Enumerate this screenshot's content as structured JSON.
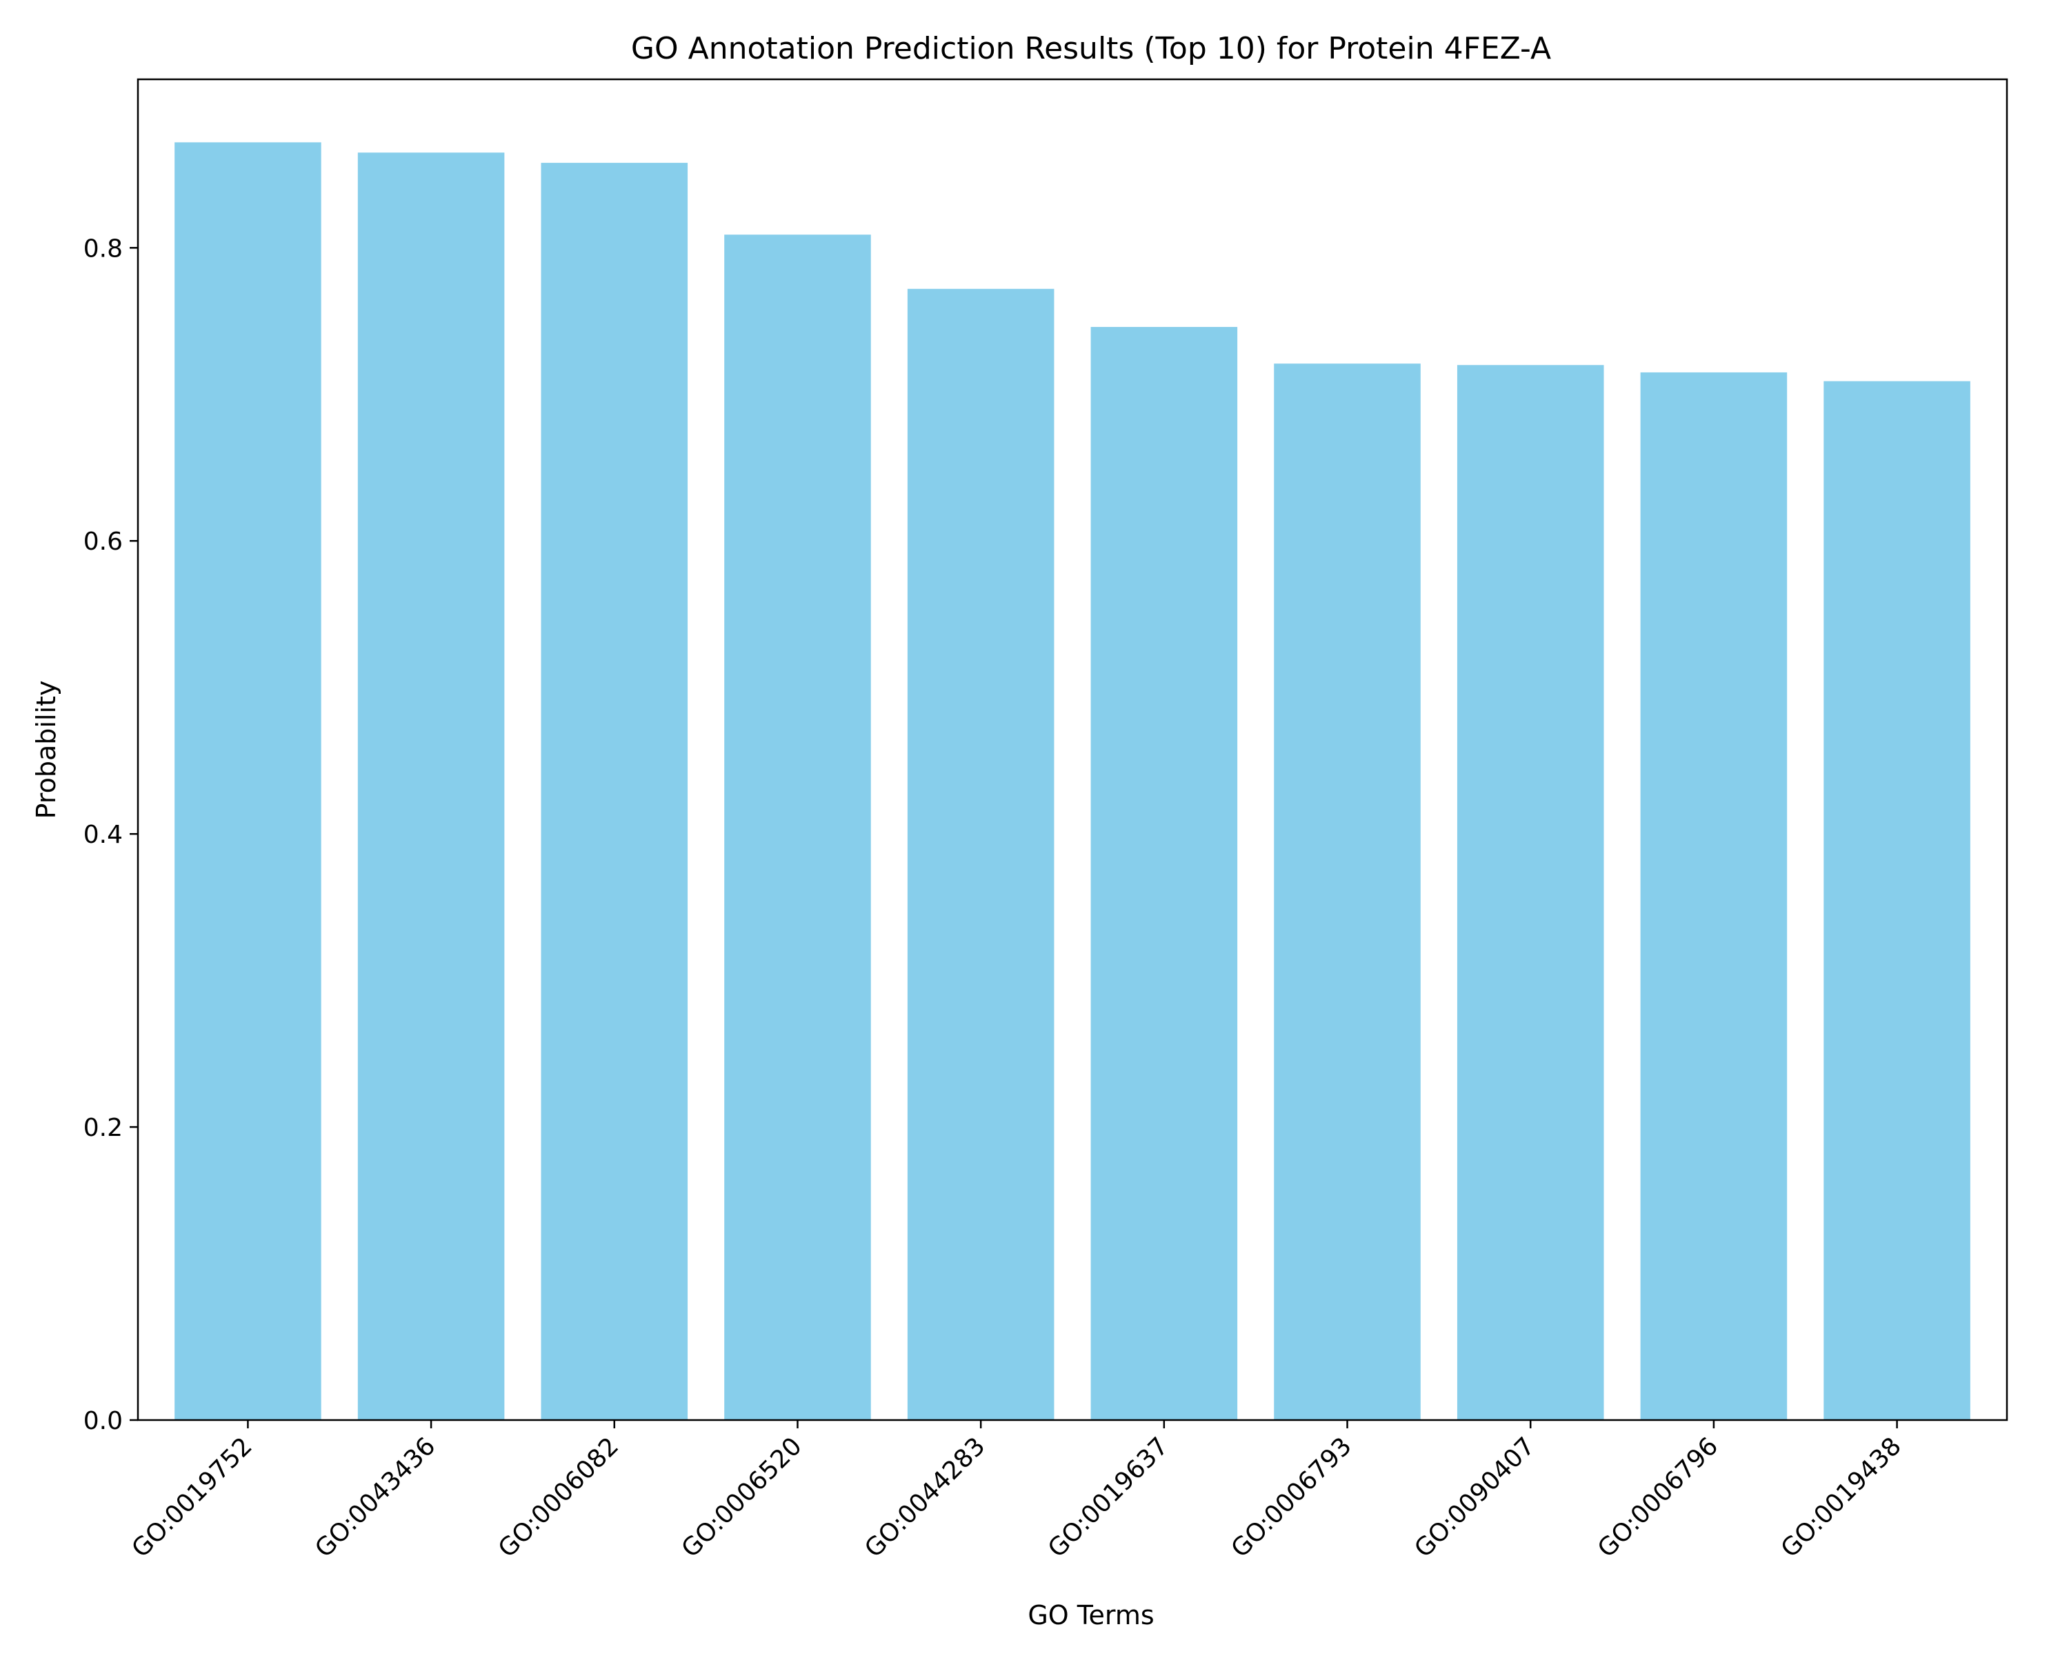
{
  "chart_data": {
    "type": "bar",
    "title": "GO Annotation Prediction Results (Top 10) for Protein 4FEZ-A",
    "xlabel": "GO Terms",
    "ylabel": "Probability",
    "categories": [
      "GO:0019752",
      "GO:0043436",
      "GO:0006082",
      "GO:0006520",
      "GO:0044283",
      "GO:0019637",
      "GO:0006793",
      "GO:0090407",
      "GO:0006796",
      "GO:0019438"
    ],
    "values": [
      0.872,
      0.865,
      0.858,
      0.809,
      0.772,
      0.746,
      0.721,
      0.72,
      0.715,
      0.709
    ],
    "ylim": [
      0,
      0.915
    ],
    "yticks": [
      "0.0",
      "0.2",
      "0.4",
      "0.6",
      "0.8"
    ],
    "bar_color": "#87ceeb",
    "grid": false,
    "legend": "none"
  }
}
